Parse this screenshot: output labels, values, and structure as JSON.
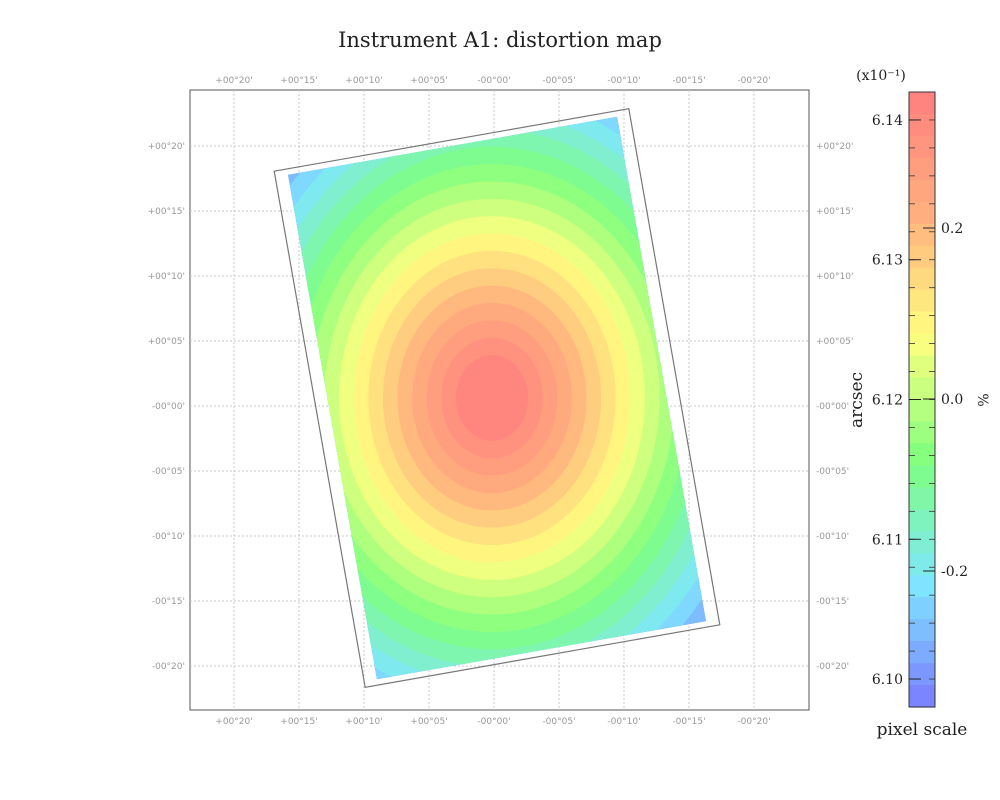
{
  "chart_data": {
    "type": "heatmap",
    "title": "Instrument A1: distortion map",
    "axis_label_right": "arcsec",
    "x_ticks": [
      "+00°20'",
      "+00°15'",
      "+00°10'",
      "+00°05'",
      "-00°00'",
      "-00°05'",
      "-00°10'",
      "-00°15'",
      "-00°20'"
    ],
    "y_ticks": [
      "+00°20'",
      "+00°15'",
      "+00°10'",
      "+00°05'",
      "-00°00'",
      "-00°05'",
      "-00°10'",
      "-00°15'",
      "-00°20'"
    ],
    "grid": true,
    "colorbar": {
      "exponent_label": "(x10⁻¹)",
      "left_ticks": [
        "6.14",
        "6.13",
        "6.12",
        "6.11",
        "6.10"
      ],
      "left_range": [
        6.098,
        6.142
      ],
      "right_ticks": [
        "0.2",
        "0.0",
        "-0.2"
      ],
      "right_unit": "%",
      "bottom_label": "pixel scale",
      "colormap": [
        "#7b7bff",
        "#7fe6ff",
        "#7fff7f",
        "#ffff7f",
        "#ffb07f",
        "#ff7f7f"
      ]
    },
    "map": {
      "center_value": 6.141,
      "corner_value": 6.099,
      "n_levels": 20,
      "rotation_deg": -10
    }
  }
}
